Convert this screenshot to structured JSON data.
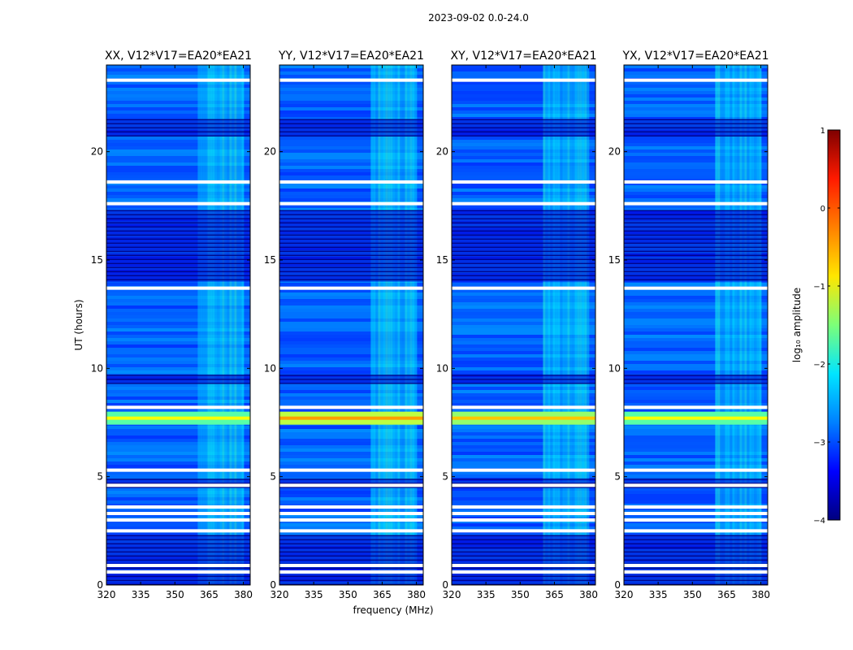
{
  "suptitle": "2023-09-02 0.0-24.0",
  "ylabel": "UT (hours)",
  "xlabel": "frequency (MHz)",
  "colorbar": {
    "label": "log₁₀ amplitude",
    "range": [
      -4,
      1
    ],
    "ticks": [
      1,
      0,
      -1,
      -2,
      -3,
      -4
    ],
    "tick_labels": [
      "1",
      "0",
      "−1",
      "−2",
      "−3",
      "−4"
    ],
    "colors": [
      "#00007f",
      "#0000ff",
      "#0080ff",
      "#00e5ff",
      "#7cff79",
      "#ffe600",
      "#ff8000",
      "#ff1a00",
      "#7f0000"
    ]
  },
  "chart_data": {
    "type": "heatmap",
    "x_range_mhz": [
      320,
      383
    ],
    "y_range_hours": [
      0,
      24
    ],
    "x_ticks": [
      320,
      335,
      350,
      365,
      380
    ],
    "y_ticks": [
      0,
      5,
      10,
      15,
      20
    ],
    "panels": [
      {
        "title": "XX, V12*V17=EA20*EA21",
        "bright_band_level": -0.9
      },
      {
        "title": "YY, V12*V17=EA20*EA21",
        "bright_band_level": -0.4
      },
      {
        "title": "XY, V12*V17=EA20*EA21",
        "bright_band_level": -0.6
      },
      {
        "title": "YX, V12*V17=EA20*EA21",
        "bright_band_level": -0.9
      }
    ],
    "background_level": -2.9,
    "enhanced_freq_range_mhz": [
      360,
      380
    ],
    "enhanced_level": -2.2,
    "bright_band_hours": [
      7.4,
      8.0
    ],
    "blank_rows_hours": [
      23.3,
      18.6,
      17.6,
      13.7,
      8.2,
      5.3,
      2.5,
      3.0,
      3.3,
      3.6,
      4.6,
      0.9,
      0.6
    ],
    "dark_bands_hours": [
      [
        14.0,
        17.3
      ],
      [
        9.3,
        9.7
      ],
      [
        4.5,
        4.9
      ],
      [
        0.0,
        2.3
      ],
      [
        20.7,
        21.5
      ]
    ]
  }
}
